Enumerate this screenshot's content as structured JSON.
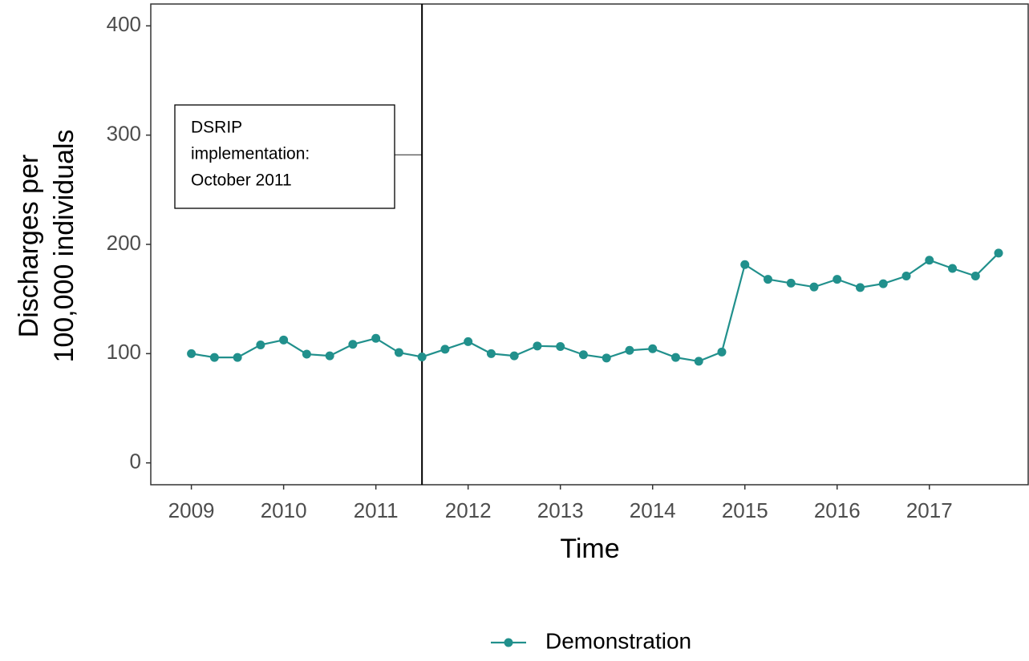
{
  "chart_data": {
    "type": "line",
    "x_label": "Time",
    "y_label": [
      "Discharges per",
      "100,000 individuals"
    ],
    "x": [
      2009,
      2009.25,
      2009.5,
      2009.75,
      2010,
      2010.25,
      2010.5,
      2010.75,
      2011,
      2011.25,
      2011.5,
      2011.75,
      2012,
      2012.25,
      2012.5,
      2012.75,
      2013,
      2013.25,
      2013.5,
      2013.75,
      2014,
      2014.25,
      2014.5,
      2014.75,
      2015,
      2015.25,
      2015.5,
      2015.75,
      2016,
      2016.25,
      2016.5,
      2016.75,
      2017,
      2017.25,
      2017.5,
      2017.75
    ],
    "series": [
      {
        "name": "Demonstration",
        "color": "#21908c",
        "values": [
          100,
          96.5,
          96.5,
          108,
          112.5,
          99.5,
          98,
          108.5,
          114,
          101,
          97,
          104,
          111,
          100,
          98,
          107,
          106.5,
          99,
          96,
          103,
          104.5,
          96.5,
          93,
          101.5,
          181.5,
          168,
          164.5,
          161,
          168,
          160.5,
          164,
          171,
          185.5,
          178,
          171,
          192
        ]
      }
    ],
    "xlim": [
      2008.56,
      2018.08
    ],
    "ylim": [
      -20,
      420
    ],
    "xticks": [
      2009,
      2010,
      2011,
      2012,
      2013,
      2014,
      2015,
      2016,
      2017
    ],
    "yticks": [
      0,
      100,
      200,
      300,
      400
    ],
    "vline": 2011.5,
    "annotation": {
      "text": [
        "DSRIP",
        "implementation:",
        "October 2011"
      ],
      "y": 282
    },
    "legend": "bottom"
  }
}
